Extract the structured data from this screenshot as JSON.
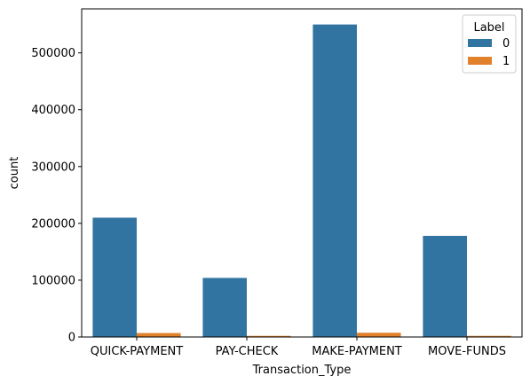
{
  "chart_data": {
    "type": "bar",
    "title": "",
    "xlabel": "Transaction_Type",
    "ylabel": "count",
    "categories": [
      "QUICK-PAYMENT",
      "PAY-CHECK",
      "MAKE-PAYMENT",
      "MOVE-FUNDS"
    ],
    "series": [
      {
        "name": "0",
        "values": [
          210000,
          104000,
          550000,
          178000
        ],
        "color": "#3274a1"
      },
      {
        "name": "1",
        "values": [
          7000,
          2000,
          7500,
          2000
        ],
        "color": "#e1812c"
      }
    ],
    "ylim": [
      0,
      577500
    ],
    "yticks": [
      0,
      100000,
      200000,
      300000,
      400000,
      500000
    ],
    "ytick_labels": [
      "0",
      "100000",
      "200000",
      "300000",
      "400000",
      "500000"
    ],
    "grid": false,
    "legend": {
      "title": "Label",
      "placement": "top-right"
    }
  }
}
